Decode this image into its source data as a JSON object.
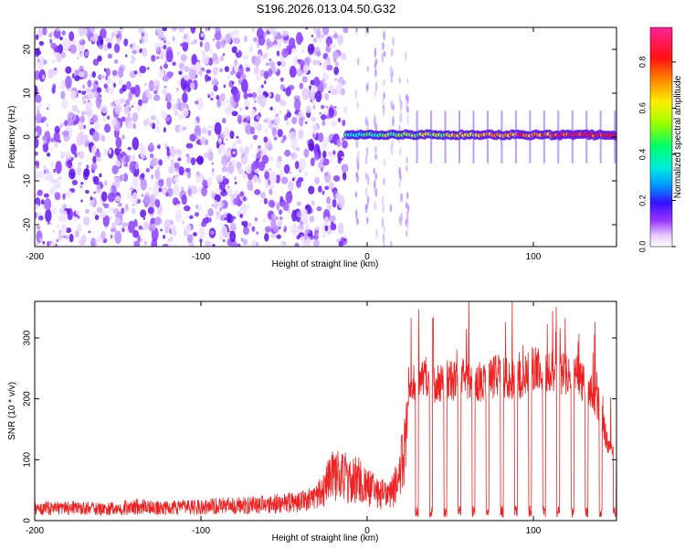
{
  "figure": {
    "title": "S196.2026.013.04.50.G32"
  },
  "chart_data": [
    {
      "type": "heatmap",
      "xlabel": "Height of straight line (km)",
      "ylabel": "Frequency (Hz)",
      "xlim": [
        -200,
        150
      ],
      "ylim": [
        -25,
        25
      ],
      "xticks": [
        -200,
        -100,
        0,
        100
      ],
      "yticks": [
        -20,
        -10,
        0,
        10,
        20
      ],
      "colorbar": {
        "label": "Normalized spectral amplitude",
        "range": [
          0,
          0.95
        ],
        "ticks": [
          0.0,
          0.2,
          0.4,
          0.6,
          0.8
        ],
        "tick_labels": [
          "0.0",
          "0.2",
          "0.4",
          "0.6",
          "0.8"
        ]
      },
      "signal_band": {
        "x_start": -12,
        "x_end": 150,
        "frequency": 0.5,
        "amplitude": 0.55
      },
      "noise_region": {
        "x_start": -200,
        "x_end": -13,
        "amplitude": 0.15
      },
      "grid": false,
      "colors": {
        "low": "#f3e8ff",
        "mid": "#7b2cff",
        "high": "#ff1a1a"
      }
    },
    {
      "type": "line",
      "xlabel": "Height of straight line (km)",
      "ylabel": "SNR (10 * v/v)",
      "xlim": [
        -200,
        150
      ],
      "ylim": [
        0,
        360
      ],
      "xticks": [
        -200,
        -100,
        0,
        100
      ],
      "yticks": [
        0,
        100,
        200,
        300
      ],
      "series": [
        {
          "x": [
            -200,
            -180,
            -160,
            -140,
            -120,
            -100,
            -80,
            -60,
            -40,
            -30,
            -25,
            -20,
            -15,
            -10,
            -5,
            0,
            5,
            10,
            15,
            20,
            24,
            26,
            30,
            35,
            40,
            50,
            60,
            70,
            80,
            90,
            100,
            110,
            120,
            130,
            140,
            145,
            150
          ],
          "y": [
            20,
            22,
            20,
            24,
            22,
            24,
            26,
            28,
            32,
            40,
            60,
            80,
            90,
            75,
            80,
            65,
            55,
            50,
            55,
            90,
            170,
            230,
            220,
            240,
            225,
            230,
            235,
            225,
            240,
            230,
            250,
            245,
            240,
            230,
            190,
            120,
            110
          ],
          "color": "#ee2222"
        }
      ],
      "grid": false
    }
  ]
}
